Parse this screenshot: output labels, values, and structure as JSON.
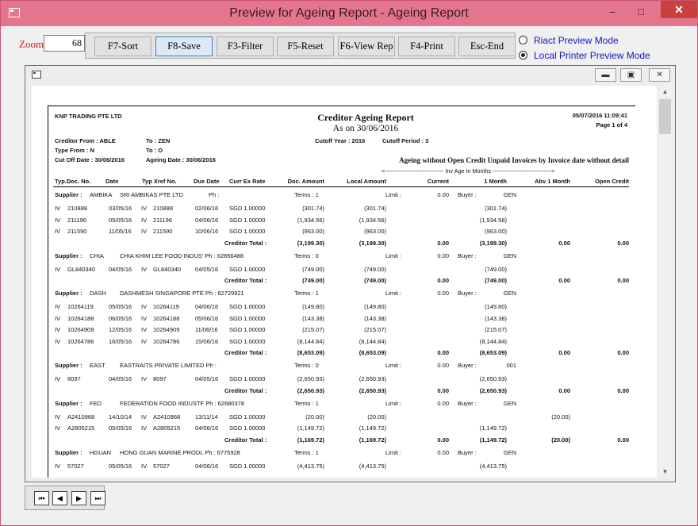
{
  "window": {
    "title": "Preview for Ageing Report - Ageing Report",
    "minimize": "–",
    "maximize": "□",
    "close": "✕"
  },
  "zoom": {
    "label": "Zoom",
    "value": "68"
  },
  "toolbar": [
    "F7-Sort",
    "F8-Save",
    "F3-Filter",
    "F5-Reset",
    "F6-View Rep",
    "F4-Print",
    "Esc-End"
  ],
  "modes": [
    {
      "label": "Riact Preview Mode",
      "selected": false
    },
    {
      "label": "Local Printer Preview Mode",
      "selected": true
    }
  ],
  "report": {
    "company": "KNP TRADING PTE LTD",
    "title": "Creditor Ageing Report",
    "as_on": "As on 30/06/2016",
    "date_time": "05/07/2016 11:09:41",
    "page": "Page 1 of 4",
    "creditor_from": "Creditor From : ABLE",
    "creditor_to": "To : ZEN",
    "type_from": "Type From : N",
    "type_to": "To : O",
    "cutoff_date": "Cut Off Date : 30/06/2016",
    "ageing_date": "Ageing Date : 30/06/2016",
    "cutoff_year": "Cutoff Year : 2016",
    "cutoff_period": "Cutoff Period : 3",
    "subtitle": "Ageing without Open Credit Unpaid Invoices by Invoice date without detail",
    "inv_age": "<------------------------------- Inv Age In Months ------------------------------->",
    "columns": [
      "Typ.Doc. No.",
      "Date",
      "Typ Xref No.",
      "Due Date",
      "Curr  Ex Rate",
      "Doc. Amount",
      "Local Amount",
      "Current",
      "1 Month",
      "Abv 1 Month",
      "Open Credit"
    ],
    "suppliers": [
      {
        "head": [
          "Supplier :",
          "AMBIKA",
          "SRI AMBIKAS PTE LTD",
          "Ph :",
          "Terms : 1",
          "Limit :",
          "0.00",
          "Buyer :",
          "GEN"
        ],
        "rows": [
          [
            "IV",
            "210888",
            "03/05/16",
            "IV",
            "210888",
            "02/06/16",
            "SGD 1.00000",
            "(301.74)",
            "(301.74)",
            "",
            "(301.74)",
            "",
            ""
          ],
          [
            "IV",
            "211196",
            "05/05/16",
            "IV",
            "211196",
            "04/06/16",
            "SGD 1.00000",
            "(1,934.56)",
            "(1,934.56)",
            "",
            "(1,934.56)",
            "",
            ""
          ],
          [
            "IV",
            "211590",
            "11/05/16",
            "IV",
            "211590",
            "10/06/16",
            "SGD 1.00000",
            "(963.00)",
            "(963.00)",
            "",
            "(963.00)",
            "",
            ""
          ]
        ],
        "total": [
          "Creditor Total :",
          "(3,199.30)",
          "(3,199.30)",
          "0.00",
          "(3,199.30)",
          "0.00",
          "0.00"
        ]
      },
      {
        "head": [
          "Supplier :",
          "CHIA",
          "CHIA KHIM LEE FOOD INDUS' Ph : 62856488",
          "",
          "Terms : 0",
          "Limit :",
          "0.00",
          "Buyer :",
          "GEN"
        ],
        "rows": [
          [
            "IV",
            "GL840340",
            "04/05/16",
            "IV",
            "GL840340",
            "04/05/16",
            "SGD 1.00000",
            "(749.00)",
            "(749.00)",
            "",
            "(749.00)",
            "",
            ""
          ]
        ],
        "total": [
          "Creditor Total :",
          "(749.00)",
          "(749.00)",
          "0.00",
          "(749.00)",
          "0.00",
          "0.00"
        ]
      },
      {
        "head": [
          "Supplier :",
          "DASH",
          "DASHMESH SINGAPORE PTE Ph : 62729921",
          "",
          "Terms : 1",
          "Limit :",
          "0.00",
          "Buyer :",
          "GEN"
        ],
        "rows": [
          [
            "IV",
            "10264119",
            "05/05/16",
            "IV",
            "10264119",
            "04/06/16",
            "SGD 1.00000",
            "(149.80)",
            "(149.80)",
            "",
            "(149.80)",
            "",
            ""
          ],
          [
            "IV",
            "10264188",
            "06/05/16",
            "IV",
            "10264188",
            "05/06/16",
            "SGD 1.00000",
            "(143.38)",
            "(143.38)",
            "",
            "(143.38)",
            "",
            ""
          ],
          [
            "IV",
            "10264909",
            "12/05/16",
            "IV",
            "10264909",
            "11/06/16",
            "SGD 1.00000",
            "(215.07)",
            "(215.07)",
            "",
            "(215.07)",
            "",
            ""
          ],
          [
            "IV",
            "10264786",
            "16/05/16",
            "IV",
            "10264786",
            "15/06/16",
            "SGD 1.00000",
            "(8,144.84)",
            "(8,144.84)",
            "",
            "(8,144.84)",
            "",
            ""
          ]
        ],
        "total": [
          "Creditor Total :",
          "(8,653.09)",
          "(8,653.09)",
          "0.00",
          "(8,653.09)",
          "0.00",
          "0.00"
        ]
      },
      {
        "head": [
          "Supplier :",
          "EAST",
          "EASTRAITS PRIVATE LIMITED Ph :",
          "",
          "Terms : 0",
          "Limit :",
          "0.00",
          "Buyer :",
          "001"
        ],
        "rows": [
          [
            "IV",
            "8097",
            "04/05/16",
            "IV",
            "8097",
            "04/05/16",
            "SGD 1.00000",
            "(2,650.93)",
            "(2,650.93)",
            "",
            "(2,650.93)",
            "",
            ""
          ]
        ],
        "total": [
          "Creditor Total :",
          "(2,650.93)",
          "(2,650.93)",
          "0.00",
          "(2,650.93)",
          "0.00",
          "0.00"
        ]
      },
      {
        "head": [
          "Supplier :",
          "FED",
          "FEDERATION FOOD INDUSTF Ph : 62680378",
          "",
          "Terms : 1",
          "Limit :",
          "0.00",
          "Buyer :",
          "GEN"
        ],
        "rows": [
          [
            "IV",
            "A2410968",
            "14/10/14",
            "IV",
            "A2410968",
            "13/11/14",
            "SGD 1.00000",
            "(20.00)",
            "(20.00)",
            "",
            "",
            "(20.00)",
            ""
          ],
          [
            "IV",
            "A2805215",
            "05/05/16",
            "IV",
            "A2805215",
            "04/06/16",
            "SGD 1.00000",
            "(1,149.72)",
            "(1,149.72)",
            "",
            "(1,149.72)",
            "",
            ""
          ]
        ],
        "total": [
          "Creditor Total :",
          "(1,169.72)",
          "(1,169.72)",
          "0.00",
          "(1,149.72)",
          "(20.00)",
          "0.00"
        ]
      },
      {
        "head": [
          "Supplier :",
          "HGUAN",
          "HONG GUAN MARINE PRODL Ph : 6775928",
          "",
          "Terms : 1",
          "Limit :",
          "0.00",
          "Buyer :",
          "GEN"
        ],
        "rows": [
          [
            "IV",
            "57027",
            "05/05/16",
            "IV",
            "57027",
            "04/06/16",
            "SGD 1.00000",
            "(4,413.75)",
            "(4,413.75)",
            "",
            "(4,413.75)",
            "",
            ""
          ]
        ],
        "total": null
      }
    ]
  },
  "nav": [
    "first",
    "prev",
    "next",
    "last"
  ]
}
